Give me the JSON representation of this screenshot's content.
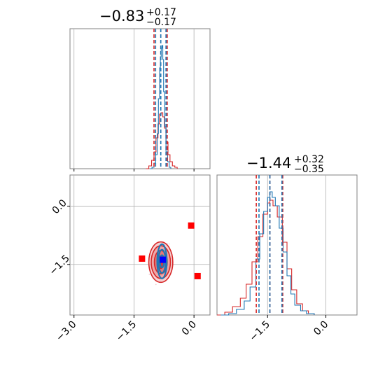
{
  "chart_data": {
    "type": "corner",
    "params": [
      "param_1",
      "param_2"
    ],
    "grid": true,
    "colors": {
      "series_a": "#1f77b4",
      "series_b": "#d62728",
      "point_a": "#0000ff",
      "point_b": "#ff0000"
    },
    "summaries": [
      {
        "median": "−0.83",
        "plus": "+0.17",
        "minus": "−0.17"
      },
      {
        "median": "−1.44",
        "plus": "+0.32",
        "minus": "−0.35"
      }
    ],
    "x_range": [
      -3.1,
      0.4
    ],
    "y_range": [
      -2.8,
      0.8
    ],
    "x_ticks": [
      {
        "value": -3.0,
        "label": "−3.0"
      },
      {
        "value": -1.5,
        "label": "−1.5"
      },
      {
        "value": 0.0,
        "label": "0.0"
      }
    ],
    "y_ticks": [
      {
        "value": 0.0,
        "label": "0.0"
      },
      {
        "value": -1.5,
        "label": "−1.5"
      }
    ],
    "marginal_1": {
      "quantile_lines_blue": [
        -0.96,
        -0.83,
        -0.7
      ],
      "quantile_lines_red": [
        -1.0,
        -0.83,
        -0.67
      ],
      "hist_blue": {
        "x": [
          -1.1,
          -1.05,
          -1.0,
          -0.96,
          -0.92,
          -0.89,
          -0.86,
          -0.84,
          -0.82,
          -0.8,
          -0.78,
          -0.76,
          -0.73,
          -0.7,
          -0.66,
          -0.62,
          -0.58
        ],
        "y": [
          0.0,
          0.01,
          0.04,
          0.1,
          0.25,
          0.5,
          0.72,
          0.8,
          0.86,
          0.88,
          0.78,
          0.55,
          0.3,
          0.12,
          0.05,
          0.01,
          0.0
        ]
      },
      "hist_red": {
        "x": [
          -1.2,
          -1.13,
          -1.06,
          -1.0,
          -0.95,
          -0.9,
          -0.86,
          -0.82,
          -0.78,
          -0.74,
          -0.7,
          -0.65,
          -0.6,
          -0.54,
          -0.48,
          -0.42
        ],
        "y": [
          0.0,
          0.02,
          0.06,
          0.12,
          0.22,
          0.32,
          0.39,
          0.4,
          0.37,
          0.29,
          0.19,
          0.1,
          0.05,
          0.02,
          0.01,
          0.0
        ]
      }
    },
    "marginal_2": {
      "quantile_lines_blue": [
        -1.72,
        -1.44,
        -1.13
      ],
      "quantile_lines_red": [
        -1.79,
        -1.44,
        -1.11
      ],
      "hist_blue": {
        "x": [
          -2.7,
          -2.5,
          -2.3,
          -2.1,
          -1.95,
          -1.8,
          -1.7,
          -1.6,
          -1.5,
          -1.44,
          -1.38,
          -1.3,
          -1.2,
          -1.1,
          -1.0,
          -0.9,
          -0.8,
          -0.65,
          -0.5,
          -0.3
        ],
        "y": [
          0.0,
          0.01,
          0.04,
          0.1,
          0.2,
          0.4,
          0.58,
          0.74,
          0.84,
          0.88,
          0.84,
          0.78,
          0.62,
          0.45,
          0.28,
          0.15,
          0.07,
          0.03,
          0.01,
          0.0
        ]
      },
      "hist_red": {
        "x": [
          -2.8,
          -2.6,
          -2.4,
          -2.2,
          -2.05,
          -1.9,
          -1.75,
          -1.62,
          -1.5,
          -1.44,
          -1.36,
          -1.25,
          -1.12,
          -1.0,
          -0.88,
          -0.75,
          -0.6,
          -0.45,
          -0.3
        ],
        "y": [
          0.0,
          0.02,
          0.06,
          0.12,
          0.22,
          0.38,
          0.56,
          0.72,
          0.8,
          0.82,
          0.78,
          0.7,
          0.52,
          0.33,
          0.18,
          0.08,
          0.03,
          0.01,
          0.0
        ]
      }
    },
    "joint": {
      "blue_marker": [
        -0.78,
        -1.38
      ],
      "red_markers": [
        [
          -0.07,
          -0.5
        ],
        [
          -1.3,
          -1.35
        ],
        [
          0.09,
          -1.8
        ]
      ],
      "contours_red": [
        {
          "center": [
            -0.83,
            -1.44
          ],
          "radii": [
            0.3,
            0.52
          ],
          "level": "outer"
        },
        {
          "center": [
            -0.83,
            -1.44
          ],
          "radii": [
            0.24,
            0.42
          ],
          "level": "mid"
        },
        {
          "center": [
            -0.83,
            -1.44
          ],
          "radii": [
            0.16,
            0.3
          ],
          "level": "inner"
        },
        {
          "center": [
            -0.83,
            -1.44
          ],
          "radii": [
            0.08,
            0.16
          ],
          "level": "core"
        }
      ],
      "contours_blue": [
        {
          "center": [
            -0.8,
            -1.42
          ],
          "radii": [
            0.12,
            0.44
          ],
          "level": "outer"
        },
        {
          "center": [
            -0.8,
            -1.42
          ],
          "radii": [
            0.09,
            0.3
          ],
          "level": "mid"
        },
        {
          "center": [
            -0.8,
            -1.42
          ],
          "radii": [
            0.05,
            0.16
          ],
          "level": "inner"
        }
      ]
    }
  }
}
